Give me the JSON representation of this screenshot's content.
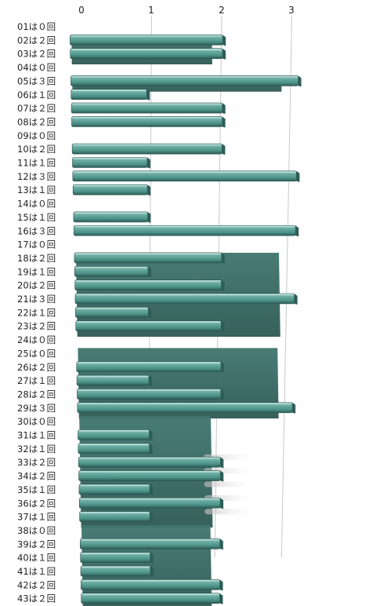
{
  "chart_data": {
    "type": "bar",
    "orientation": "horizontal",
    "title": "",
    "xlabel": "",
    "ylabel": "",
    "xlim": [
      0,
      3
    ],
    "x_ticks": [
      0,
      1,
      2,
      3
    ],
    "x_tick_labels": [
      "0",
      "1",
      "2",
      "3"
    ],
    "grid": true,
    "categories": [
      "01は０回",
      "02は２回",
      "03は２回",
      "04は０回",
      "05は３回",
      "06は１回",
      "07は２回",
      "08は２回",
      "09は０回",
      "10は２回",
      "11は１回",
      "12は３回",
      "13は１回",
      "14は０回",
      "15は１回",
      "16は３回",
      "17は０回",
      "18は２回",
      "19は１回",
      "20は２回",
      "21は３回",
      "22は１回",
      "23は２回",
      "24は０回",
      "25は０回",
      "26は２回",
      "27は１回",
      "28は２回",
      "29は３回",
      "30は０回",
      "31は１回",
      "32は１回",
      "33は２回",
      "34は２回",
      "35は１回",
      "36は２回",
      "37は１回",
      "38は０回",
      "39は２回",
      "40は１回",
      "41は１回",
      "42は２回",
      "43は２回"
    ],
    "values": [
      0,
      2,
      2,
      0,
      3,
      1,
      2,
      2,
      0,
      2,
      1,
      3,
      1,
      0,
      1,
      3,
      0,
      2,
      1,
      2,
      3,
      1,
      2,
      0,
      0,
      2,
      1,
      2,
      3,
      0,
      1,
      1,
      2,
      2,
      1,
      2,
      1,
      0,
      2,
      1,
      1,
      2,
      2
    ],
    "colors": {
      "bar_face": "#4e968c",
      "bar_highlight": "#8cc4bc",
      "bar_shadow": "#2e5c56",
      "bar_dark": "#3a6b64",
      "grid": "#c8c8c8"
    }
  }
}
